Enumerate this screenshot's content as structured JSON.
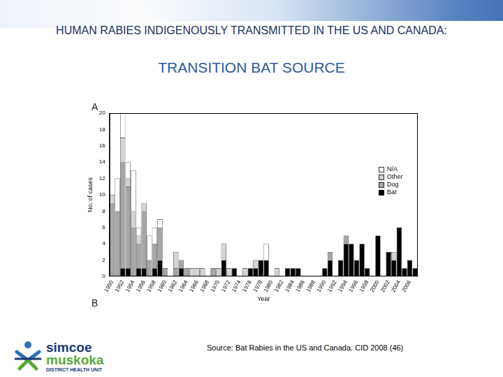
{
  "slide": {
    "title": "HUMAN RABIES INDIGENOUSLY TRANSMITTED IN THE US AND CANADA:",
    "subtitle": "TRANSITION BAT SOURCE",
    "panel_labels": [
      "A",
      "B"
    ],
    "source": "Source: Bat Rabies in the US and Canada. CID 2008 (46)",
    "logo": [
      "simcoe",
      "muskoka",
      "DISTRICT HEALTH UNIT"
    ]
  },
  "chart_data": {
    "type": "bar",
    "stacked": true,
    "grid": false,
    "legend": "upper right",
    "x_label": "Year",
    "y_label": "No. of cases",
    "categories": [
      "1950",
      null,
      "1952",
      null,
      "1954",
      null,
      "1956",
      null,
      "1958",
      null,
      "1960",
      null,
      "1962",
      null,
      "1964",
      null,
      "1966",
      null,
      "1968",
      null,
      "1970",
      null,
      "1972",
      null,
      "1974",
      null,
      "1976",
      null,
      "1978",
      null,
      "1980",
      null,
      "1982",
      null,
      "1984",
      null,
      "1986",
      null,
      "1988",
      null,
      "1990",
      null,
      "1992",
      null,
      "1994",
      null,
      "1996",
      null,
      "1998",
      null,
      "2000",
      null,
      "2002",
      null,
      "2004",
      null,
      "2006",
      null
    ],
    "series": [
      {
        "name": "Bat",
        "color": "#000000",
        "values": [
          0,
          0,
          1,
          1,
          0,
          1,
          1,
          0,
          1,
          2,
          0,
          0,
          0,
          1,
          0,
          0,
          0,
          0,
          0,
          0,
          0,
          2,
          0,
          1,
          0,
          0,
          1,
          1,
          2,
          2,
          0,
          0,
          0,
          1,
          1,
          1,
          0,
          0,
          0,
          0,
          1,
          2,
          0,
          2,
          4,
          4,
          2,
          4,
          1,
          0,
          5,
          0,
          3,
          2,
          6,
          1,
          2,
          1
        ]
      },
      {
        "name": "Dog",
        "color": "#a6a6a6",
        "values": [
          9,
          8,
          13,
          10,
          6,
          3,
          7,
          2,
          3,
          4,
          1,
          0,
          1,
          1,
          1,
          0,
          0,
          0,
          0,
          1,
          0,
          0,
          0,
          0,
          0,
          0,
          0,
          0,
          0,
          0,
          0,
          0,
          0,
          0,
          0,
          0,
          0,
          0,
          0,
          0,
          0,
          1,
          0,
          0,
          1,
          0,
          0,
          0,
          0,
          0,
          0,
          0,
          0,
          0,
          0,
          0,
          0,
          0
        ]
      },
      {
        "name": "Other",
        "color": "#d4d4d4",
        "values": [
          1,
          0,
          3,
          1,
          2,
          1,
          1,
          0,
          0,
          0,
          0,
          0,
          2,
          0,
          0,
          1,
          1,
          1,
          0,
          0,
          1,
          2,
          1,
          0,
          0,
          1,
          0,
          1,
          0,
          0,
          0,
          1,
          0,
          0,
          0,
          0,
          0,
          0,
          0,
          0,
          0,
          0,
          0,
          0,
          0,
          0,
          0,
          0,
          0,
          0,
          0,
          0,
          0,
          1,
          0,
          0,
          0,
          0
        ]
      },
      {
        "name": "N/A",
        "color": "#ffffff",
        "values": [
          0,
          4,
          3,
          2,
          5,
          1,
          0,
          3,
          2,
          1,
          0,
          0,
          0,
          0,
          0,
          0,
          0,
          0,
          0,
          0,
          0,
          0,
          0,
          0,
          0,
          0,
          0,
          0,
          0,
          2,
          0,
          0,
          0,
          0,
          0,
          0,
          0,
          0,
          0,
          0,
          0,
          0,
          0,
          0,
          0,
          0,
          0,
          0,
          0,
          0,
          0,
          0,
          0,
          0,
          0,
          0,
          0,
          0
        ]
      }
    ],
    "ylim": [
      0,
      20
    ],
    "yticks": [
      0,
      2,
      4,
      6,
      8,
      10,
      12,
      14,
      16,
      18,
      20
    ]
  }
}
